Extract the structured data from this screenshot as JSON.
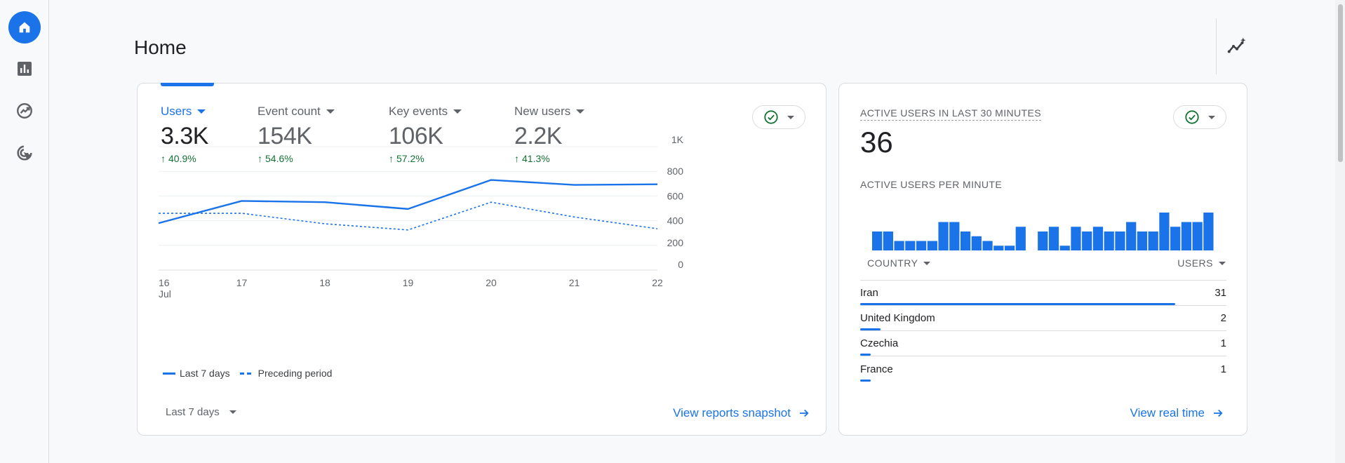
{
  "page": {
    "title": "Home"
  },
  "nav": {
    "items": [
      {
        "name": "home",
        "icon": "home-icon",
        "active": true
      },
      {
        "name": "reports",
        "icon": "bar-chart-icon",
        "active": false
      },
      {
        "name": "explore",
        "icon": "explore-icon",
        "active": false
      },
      {
        "name": "advertising",
        "icon": "ads-icon",
        "active": false
      }
    ]
  },
  "header": {
    "insights_icon": "insights-icon"
  },
  "overview": {
    "metrics": [
      {
        "label": "Users",
        "value": "3.3K",
        "change": "40.9%",
        "selected": true
      },
      {
        "label": "Event count",
        "value": "154K",
        "change": "54.6%",
        "selected": false
      },
      {
        "label": "Key events",
        "value": "106K",
        "change": "57.2%",
        "selected": false
      },
      {
        "label": "New users",
        "value": "2.2K",
        "change": "41.3%",
        "selected": false
      }
    ],
    "legend": {
      "current": "Last 7 days",
      "previous": "Preceding period"
    },
    "date_range": "Last 7 days",
    "view_link": "View reports snapshot"
  },
  "chart_data": {
    "type": "line",
    "x": [
      "16",
      "17",
      "18",
      "19",
      "20",
      "21",
      "22"
    ],
    "x_tick_labels": [
      "16",
      "17",
      "18",
      "19",
      "20",
      "21",
      "22"
    ],
    "x_sublabel": "Jul",
    "y_ticks": [
      "1K",
      "800",
      "600",
      "400",
      "200",
      "0"
    ],
    "ylim": [
      0,
      1000
    ],
    "grid": true,
    "series": [
      {
        "name": "Last 7 days",
        "style": "solid",
        "values": [
          380,
          560,
          550,
          495,
          730,
          690,
          695
        ]
      },
      {
        "name": "Preceding period",
        "style": "dashed",
        "values": [
          460,
          460,
          375,
          325,
          550,
          430,
          335
        ]
      }
    ]
  },
  "realtime": {
    "title": "ACTIVE USERS IN LAST 30 MINUTES",
    "count": "36",
    "per_minute_label": "ACTIVE USERS PER MINUTE",
    "per_minute": [
      2,
      2,
      1,
      1,
      1,
      1,
      3,
      3,
      2,
      1.5,
      1,
      0.5,
      0.5,
      2.5,
      0,
      2,
      2.5,
      0.5,
      2.5,
      2,
      2.5,
      2,
      2,
      3,
      2,
      2,
      4,
      2.5,
      3,
      3,
      4
    ],
    "columns": {
      "country": "COUNTRY",
      "users": "USERS"
    },
    "rows": [
      {
        "country": "Iran",
        "users": "31",
        "share": 0.86
      },
      {
        "country": "United Kingdom",
        "users": "2",
        "share": 0.056
      },
      {
        "country": "Czechia",
        "users": "1",
        "share": 0.028
      },
      {
        "country": "France",
        "users": "1",
        "share": 0.028
      }
    ],
    "view_link": "View real time"
  },
  "colors": {
    "accent": "#1a73e8",
    "positive": "#137333",
    "check": "#137333"
  }
}
